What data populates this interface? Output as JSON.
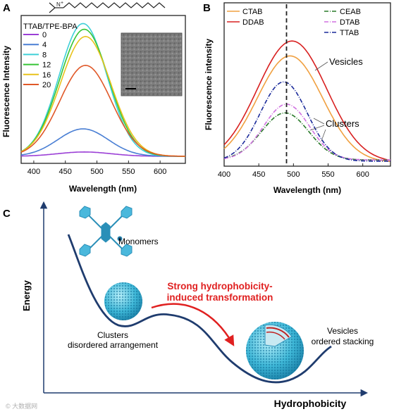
{
  "panels": {
    "a": {
      "letter": "A"
    },
    "b": {
      "letter": "B"
    },
    "c": {
      "letter": "C"
    }
  },
  "chart_data": [
    {
      "panel": "A",
      "type": "line",
      "xlabel": "Wavelength (nm)",
      "ylabel": "Fluorescence Intensity",
      "xlim": [
        380,
        640
      ],
      "xticks": [
        400,
        450,
        500,
        550,
        600
      ],
      "legend_title": "TTAB/TPE-BPA",
      "legend_position": "top-left",
      "grid": false,
      "series": [
        {
          "name": "0",
          "color": "#9b3fd6",
          "peak_x": 480,
          "peak": 0.03,
          "sigma": 42,
          "base": 0.0
        },
        {
          "name": "4",
          "color": "#4a7fd4",
          "peak_x": 478,
          "peak": 0.19,
          "sigma": 40,
          "base": 0.0
        },
        {
          "name": "8",
          "color": "#3fd0d8",
          "peak_x": 478,
          "peak": 0.92,
          "sigma": 38,
          "base": 0.0
        },
        {
          "name": "12",
          "color": "#35c435",
          "peak_x": 480,
          "peak": 0.88,
          "sigma": 39,
          "base": 0.0
        },
        {
          "name": "16",
          "color": "#e8c21c",
          "peak_x": 482,
          "peak": 0.83,
          "sigma": 40,
          "base": 0.0
        },
        {
          "name": "20",
          "color": "#e05828",
          "peak_x": 482,
          "peak": 0.63,
          "sigma": 41,
          "base": 0.0
        }
      ]
    },
    {
      "panel": "B",
      "type": "line",
      "xlabel": "Wavelength (nm)",
      "ylabel": "Fluorescence intensity",
      "xlim": [
        400,
        640
      ],
      "xticks": [
        400,
        450,
        500,
        550,
        600
      ],
      "reference_line_x": 490,
      "grid": false,
      "series": [
        {
          "name": "CTAB",
          "color": "#f0a040",
          "dash": "",
          "peak_x": 495,
          "peak": 0.86,
          "sigma": 47,
          "base": 0.03
        },
        {
          "name": "DDAB",
          "color": "#d82020",
          "dash": "",
          "peak_x": 498,
          "peak": 0.98,
          "sigma": 50,
          "base": 0.03
        },
        {
          "name": "CEAB",
          "color": "#2a7a2a",
          "dash": "6,2,1,2",
          "peak_x": 488,
          "peak": 0.38,
          "sigma": 34,
          "base": 0.05
        },
        {
          "name": "DTAB",
          "color": "#d070e0",
          "dash": "6,2,1,2",
          "peak_x": 490,
          "peak": 0.45,
          "sigma": 33,
          "base": 0.05
        },
        {
          "name": "TTAB",
          "color": "#1a2a9a",
          "dash": "6,2,1,2",
          "peak_x": 486,
          "peak": 0.64,
          "sigma": 34,
          "base": 0.04
        }
      ],
      "annotations": [
        "Vesicles",
        "Clusters"
      ]
    }
  ],
  "schematic": {
    "ylabel": "Energy",
    "xlabel": "Hydrophobicity",
    "monomers_label": "Monomers",
    "clusters_label_1": "Clusters",
    "clusters_label_2": "disordered arrangement",
    "transition_label_1": "Strong hydrophobicity-",
    "transition_label_2": "induced transformation",
    "vesicles_label_1": "Vesicles",
    "vesicles_label_2": "ordered stacking",
    "curve_color": "#1f3c6e",
    "arrow_color": "#e02020"
  },
  "watermark": "© 大数据网"
}
